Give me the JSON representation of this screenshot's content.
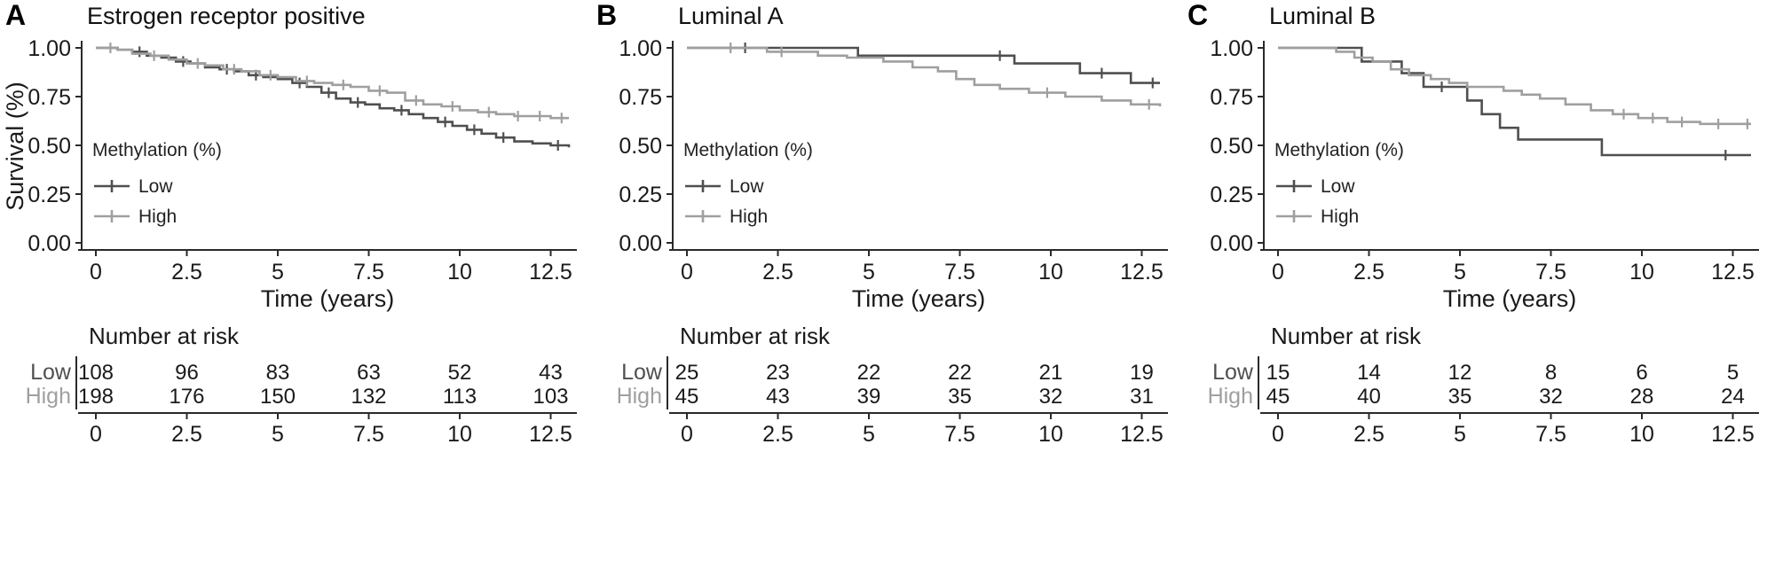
{
  "figure": {
    "ylabel": "Survival (%)",
    "xlabel": "Time (years)",
    "legend_title": "Methylation (%)",
    "risk_table_title": "Number at risk",
    "y_ticks": [
      {
        "value": 1.0,
        "label": "1.00"
      },
      {
        "value": 0.75,
        "label": "0.75"
      },
      {
        "value": 0.5,
        "label": "0.50"
      },
      {
        "value": 0.25,
        "label": "0.25"
      },
      {
        "value": 0.0,
        "label": "0.00"
      }
    ],
    "x_ticks": [
      {
        "value": 0,
        "label": "0"
      },
      {
        "value": 2.5,
        "label": "2.5"
      },
      {
        "value": 5,
        "label": "5"
      },
      {
        "value": 7.5,
        "label": "7.5"
      },
      {
        "value": 10,
        "label": "10"
      },
      {
        "value": 12.5,
        "label": "12.5"
      }
    ],
    "colors": {
      "low": "#4f4f4f",
      "high": "#9f9f9f",
      "axis": "#2a2a2a",
      "text": "#1a1a1a"
    }
  },
  "chart_data": [
    {
      "type": "line",
      "panel_label": "A",
      "title": "Estrogen receptor positive",
      "show_ylabel": true,
      "xlabel": "Time (years)",
      "ylabel": "Survival (%)",
      "xlim": [
        0,
        13
      ],
      "ylim": [
        0,
        1
      ],
      "legend_title": "Methylation (%)",
      "series": [
        {
          "name": "Low",
          "color": "#4f4f4f",
          "steps": [
            [
              0,
              1.0
            ],
            [
              0.6,
              0.99
            ],
            [
              1.0,
              0.98
            ],
            [
              1.4,
              0.96
            ],
            [
              1.8,
              0.95
            ],
            [
              2.2,
              0.93
            ],
            [
              2.6,
              0.92
            ],
            [
              3.0,
              0.9
            ],
            [
              3.4,
              0.89
            ],
            [
              3.8,
              0.88
            ],
            [
              4.2,
              0.86
            ],
            [
              4.6,
              0.85
            ],
            [
              5.0,
              0.84
            ],
            [
              5.4,
              0.82
            ],
            [
              5.8,
              0.8
            ],
            [
              6.2,
              0.77
            ],
            [
              6.6,
              0.74
            ],
            [
              7.0,
              0.72
            ],
            [
              7.4,
              0.71
            ],
            [
              7.8,
              0.69
            ],
            [
              8.2,
              0.68
            ],
            [
              8.6,
              0.66
            ],
            [
              9.0,
              0.64
            ],
            [
              9.4,
              0.62
            ],
            [
              9.8,
              0.6
            ],
            [
              10.2,
              0.58
            ],
            [
              10.6,
              0.56
            ],
            [
              11.0,
              0.54
            ],
            [
              11.5,
              0.52
            ],
            [
              12.0,
              0.51
            ],
            [
              12.5,
              0.5
            ],
            [
              13.0,
              0.49
            ]
          ],
          "censor_times": [
            1.2,
            2.4,
            3.6,
            4.4,
            5.6,
            6.4,
            7.2,
            8.4,
            9.6,
            10.4,
            11.2,
            12.7
          ]
        },
        {
          "name": "High",
          "color": "#9f9f9f",
          "steps": [
            [
              0,
              1.0
            ],
            [
              0.6,
              0.99
            ],
            [
              1.0,
              0.97
            ],
            [
              1.5,
              0.96
            ],
            [
              2.0,
              0.94
            ],
            [
              2.5,
              0.92
            ],
            [
              3.0,
              0.91
            ],
            [
              3.5,
              0.89
            ],
            [
              4.0,
              0.88
            ],
            [
              4.5,
              0.86
            ],
            [
              5.0,
              0.85
            ],
            [
              5.5,
              0.83
            ],
            [
              6.0,
              0.82
            ],
            [
              6.5,
              0.81
            ],
            [
              7.0,
              0.8
            ],
            [
              7.5,
              0.78
            ],
            [
              8.0,
              0.77
            ],
            [
              8.5,
              0.73
            ],
            [
              9.0,
              0.71
            ],
            [
              9.5,
              0.7
            ],
            [
              10.0,
              0.68
            ],
            [
              10.5,
              0.67
            ],
            [
              11.0,
              0.66
            ],
            [
              11.5,
              0.65
            ],
            [
              12.0,
              0.65
            ],
            [
              12.5,
              0.64
            ],
            [
              13.0,
              0.64
            ]
          ],
          "censor_times": [
            0.4,
            1.6,
            2.8,
            3.8,
            4.8,
            5.8,
            6.8,
            7.8,
            8.8,
            9.8,
            10.8,
            11.6,
            12.2,
            12.8
          ]
        }
      ],
      "number_at_risk": {
        "title": "Number at risk",
        "times": [
          0,
          2.5,
          5,
          7.5,
          10,
          12.5
        ],
        "rows": [
          {
            "label": "Low",
            "color": "#4f4f4f",
            "values": [
              "108",
              "96",
              "83",
              "63",
              "52",
              "43"
            ]
          },
          {
            "label": "High",
            "color": "#9f9f9f",
            "values": [
              "198",
              "176",
              "150",
              "132",
              "113",
              "103"
            ]
          }
        ]
      }
    },
    {
      "type": "line",
      "panel_label": "B",
      "title": "Luminal A",
      "show_ylabel": false,
      "xlabel": "Time (years)",
      "ylabel": "Survival (%)",
      "xlim": [
        0,
        13
      ],
      "ylim": [
        0,
        1
      ],
      "legend_title": "Methylation (%)",
      "series": [
        {
          "name": "Low",
          "color": "#4f4f4f",
          "steps": [
            [
              0,
              1.0
            ],
            [
              4.7,
              0.96
            ],
            [
              9.0,
              0.92
            ],
            [
              10.8,
              0.87
            ],
            [
              12.2,
              0.82
            ],
            [
              13,
              0.82
            ]
          ],
          "censor_times": [
            1.6,
            8.6,
            11.4,
            12.8
          ]
        },
        {
          "name": "High",
          "color": "#9f9f9f",
          "steps": [
            [
              0,
              1.0
            ],
            [
              2.2,
              0.98
            ],
            [
              3.6,
              0.96
            ],
            [
              4.4,
              0.95
            ],
            [
              5.4,
              0.93
            ],
            [
              6.2,
              0.9
            ],
            [
              6.9,
              0.88
            ],
            [
              7.4,
              0.84
            ],
            [
              7.9,
              0.81
            ],
            [
              8.6,
              0.79
            ],
            [
              9.4,
              0.77
            ],
            [
              10.4,
              0.75
            ],
            [
              11.4,
              0.73
            ],
            [
              12.2,
              0.71
            ],
            [
              13,
              0.7
            ]
          ],
          "censor_times": [
            1.2,
            2.6,
            9.9,
            12.7
          ]
        }
      ],
      "number_at_risk": {
        "title": "Number at risk",
        "times": [
          0,
          2.5,
          5,
          7.5,
          10,
          12.5
        ],
        "rows": [
          {
            "label": "Low",
            "color": "#4f4f4f",
            "values": [
              "25",
              "23",
              "22",
              "22",
              "21",
              "19"
            ]
          },
          {
            "label": "High",
            "color": "#9f9f9f",
            "values": [
              "45",
              "43",
              "39",
              "35",
              "32",
              "31"
            ]
          }
        ]
      }
    },
    {
      "type": "line",
      "panel_label": "C",
      "title": "Luminal B",
      "show_ylabel": false,
      "xlabel": "Time (years)",
      "ylabel": "Survival (%)",
      "xlim": [
        0,
        13
      ],
      "ylim": [
        0,
        1
      ],
      "legend_title": "Methylation (%)",
      "series": [
        {
          "name": "Low",
          "color": "#4f4f4f",
          "steps": [
            [
              0,
              1.0
            ],
            [
              2.3,
              0.93
            ],
            [
              3.4,
              0.87
            ],
            [
              4.0,
              0.8
            ],
            [
              5.2,
              0.73
            ],
            [
              5.6,
              0.66
            ],
            [
              6.1,
              0.59
            ],
            [
              6.6,
              0.53
            ],
            [
              8.9,
              0.45
            ],
            [
              13,
              0.45
            ]
          ],
          "censor_times": [
            4.5,
            12.3
          ]
        },
        {
          "name": "High",
          "color": "#9f9f9f",
          "steps": [
            [
              0,
              1.0
            ],
            [
              1.6,
              0.98
            ],
            [
              2.1,
              0.95
            ],
            [
              2.6,
              0.93
            ],
            [
              3.1,
              0.89
            ],
            [
              3.6,
              0.86
            ],
            [
              4.2,
              0.84
            ],
            [
              4.7,
              0.82
            ],
            [
              5.2,
              0.8
            ],
            [
              6.2,
              0.78
            ],
            [
              6.7,
              0.76
            ],
            [
              7.2,
              0.74
            ],
            [
              7.9,
              0.71
            ],
            [
              8.6,
              0.68
            ],
            [
              9.2,
              0.66
            ],
            [
              9.9,
              0.64
            ],
            [
              10.7,
              0.62
            ],
            [
              11.6,
              0.61
            ],
            [
              13,
              0.61
            ]
          ],
          "censor_times": [
            9.5,
            10.3,
            11.1,
            12.1,
            12.9
          ]
        }
      ],
      "number_at_risk": {
        "title": "Number at risk",
        "times": [
          0,
          2.5,
          5,
          7.5,
          10,
          12.5
        ],
        "rows": [
          {
            "label": "Low",
            "color": "#4f4f4f",
            "values": [
              "15",
              "14",
              "12",
              "8",
              "6",
              "5"
            ]
          },
          {
            "label": "High",
            "color": "#9f9f9f",
            "values": [
              "45",
              "40",
              "35",
              "32",
              "28",
              "24"
            ]
          }
        ]
      }
    }
  ]
}
